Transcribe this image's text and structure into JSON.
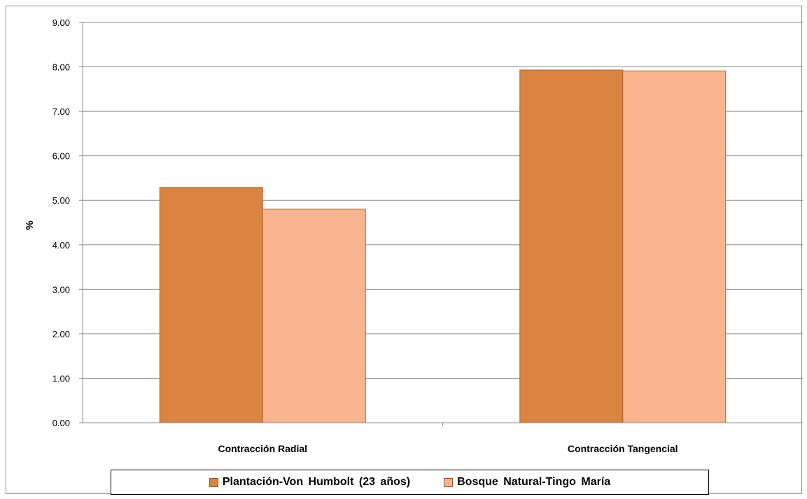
{
  "chart_data": {
    "type": "bar",
    "title": "",
    "xlabel": "",
    "ylabel": "%",
    "ylim": [
      0,
      9
    ],
    "yticks": [
      "0.00",
      "1.00",
      "2.00",
      "3.00",
      "4.00",
      "5.00",
      "6.00",
      "7.00",
      "8.00",
      "9.00"
    ],
    "categories": [
      "Contracción Radial",
      "Contracción Tangencial"
    ],
    "series": [
      {
        "name": "Plantación-Von  Humbolt  (23 años)",
        "values": [
          5.29,
          7.93
        ],
        "color": "#db8441"
      },
      {
        "name": "Bosque Natural-Tingo  María",
        "values": [
          4.8,
          7.91
        ],
        "color": "#f9b490"
      }
    ],
    "grid": true,
    "legend_position": "bottom"
  }
}
